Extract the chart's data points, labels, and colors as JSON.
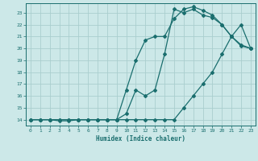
{
  "xlabel": "Humidex (Indice chaleur)",
  "bg_color": "#cce8e8",
  "grid_color": "#aacece",
  "line_color": "#1a6e6e",
  "xlim": [
    -0.5,
    23.5
  ],
  "ylim": [
    13.5,
    23.8
  ],
  "xticks": [
    0,
    1,
    2,
    3,
    4,
    5,
    6,
    7,
    8,
    9,
    10,
    11,
    12,
    13,
    14,
    15,
    16,
    17,
    18,
    19,
    20,
    21,
    22,
    23
  ],
  "yticks": [
    14,
    15,
    16,
    17,
    18,
    19,
    20,
    21,
    22,
    23
  ],
  "line1_x": [
    0,
    1,
    2,
    3,
    4,
    5,
    6,
    7,
    8,
    9,
    10,
    11,
    12,
    13,
    14,
    15,
    16,
    17,
    18,
    19,
    20,
    21,
    22,
    23
  ],
  "line1_y": [
    14,
    14,
    14,
    14,
    14,
    14,
    14,
    14,
    14,
    14,
    14,
    14,
    14,
    14,
    14,
    14,
    15,
    16,
    17,
    18,
    19.5,
    21,
    22,
    20
  ],
  "line2_x": [
    0,
    1,
    2,
    3,
    4,
    5,
    6,
    7,
    8,
    9,
    10,
    11,
    12,
    13,
    14,
    15,
    16,
    17,
    18,
    19,
    20,
    21,
    22,
    23
  ],
  "line2_y": [
    14,
    14,
    14,
    14,
    14,
    14,
    14,
    14,
    14,
    14,
    14.5,
    16.5,
    16,
    16.5,
    19.5,
    23.3,
    23.0,
    23.3,
    22.8,
    22.6,
    22,
    21,
    20.2,
    20
  ],
  "line3_x": [
    0,
    1,
    2,
    3,
    4,
    5,
    6,
    7,
    8,
    9,
    10,
    11,
    12,
    13,
    14,
    15,
    16,
    17,
    18,
    19,
    20,
    21,
    22,
    23
  ],
  "line3_y": [
    14,
    14,
    14,
    13.9,
    13.9,
    14,
    14,
    14,
    14,
    14,
    16.5,
    19.0,
    20.7,
    21.0,
    21.0,
    22.5,
    23.3,
    23.5,
    23.2,
    22.8,
    22,
    21,
    20.3,
    20
  ]
}
